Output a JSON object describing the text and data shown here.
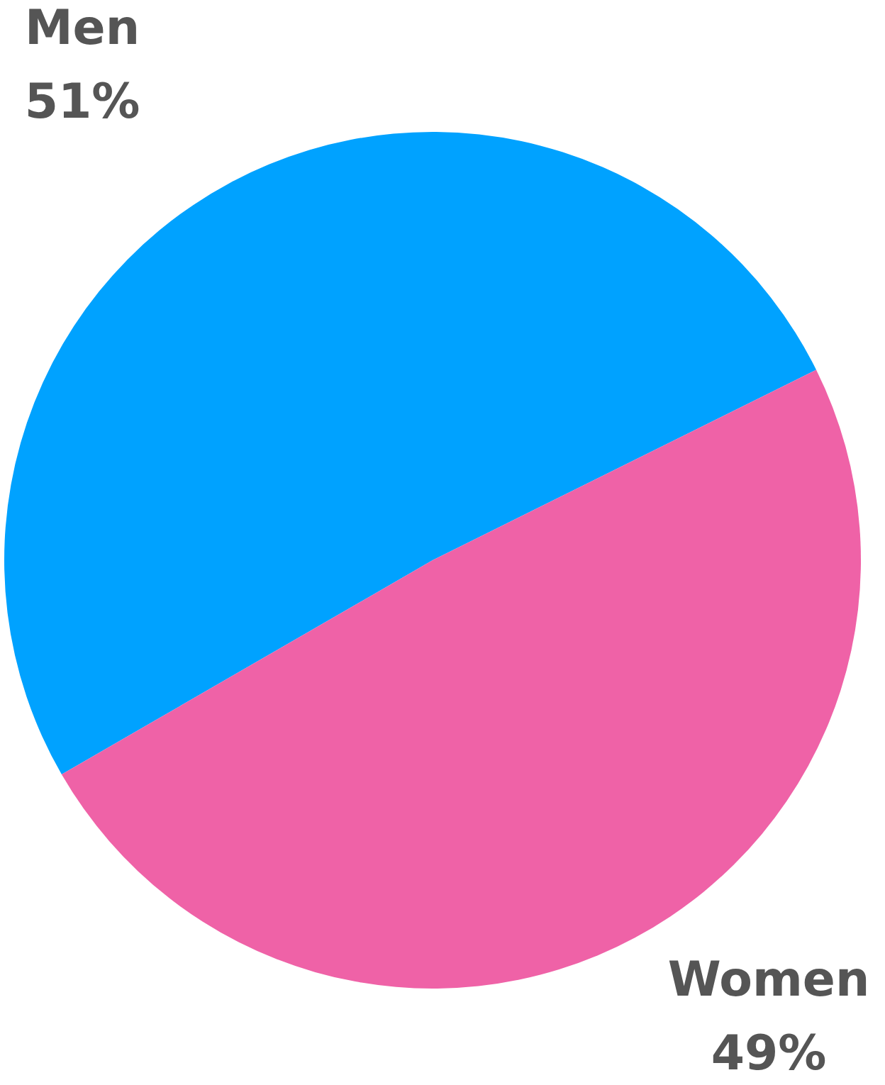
{
  "chart_data": {
    "type": "pie",
    "categories": [
      "Men",
      "Women"
    ],
    "values": [
      51,
      49
    ],
    "colors": [
      "#00a2ff",
      "#ef62a7"
    ],
    "value_labels": [
      "51%",
      "49%"
    ],
    "legend": false
  }
}
